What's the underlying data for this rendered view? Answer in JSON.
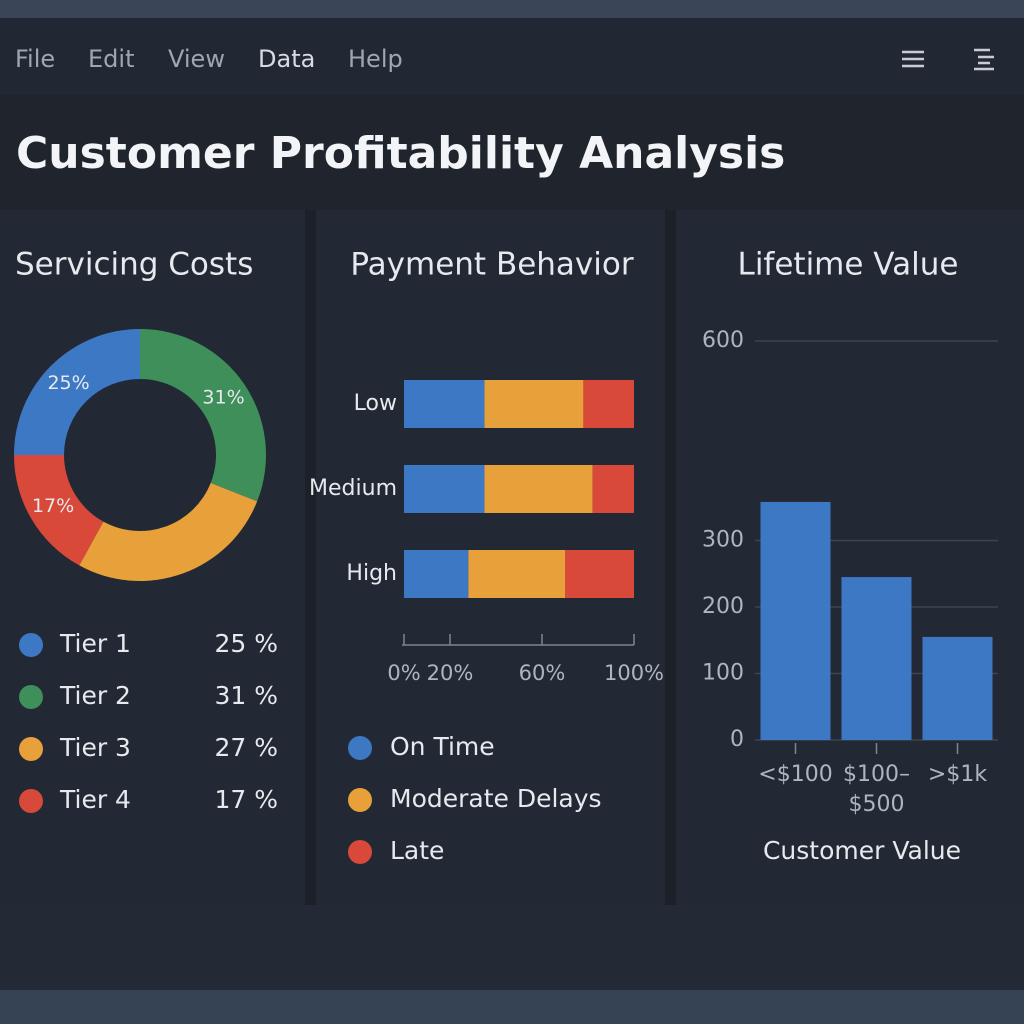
{
  "menu": [
    "File",
    "Edit",
    "View",
    "Data",
    "Help"
  ],
  "title": "Customer Profitability Analysis",
  "chart_data": [
    {
      "type": "pie",
      "title": "Servicing Costs",
      "categories": [
        "Tier 1",
        "Tier 2",
        "Tier 3",
        "Tier 4"
      ],
      "values": [
        25,
        31,
        27,
        17
      ],
      "value_labels": [
        "25 %",
        "31 %",
        "27 %",
        "17 %"
      ],
      "slice_labels": [
        "25%",
        "31%",
        null,
        "17%"
      ],
      "colors": [
        "#3d78c4",
        "#3f8f5a",
        "#e8a03a",
        "#d9493a"
      ],
      "donut": true
    },
    {
      "type": "bar",
      "title": "Payment Behavior",
      "orientation": "horizontal",
      "stacked": true,
      "categories": [
        "Low",
        "Medium",
        "High"
      ],
      "series": [
        {
          "name": "On Time",
          "color": "#3d78c4",
          "values": [
            35,
            35,
            28
          ]
        },
        {
          "name": "Moderate Delays",
          "color": "#e8a03a",
          "values": [
            43,
            47,
            42
          ]
        },
        {
          "name": "Late",
          "color": "#d9493a",
          "values": [
            22,
            18,
            30
          ]
        }
      ],
      "xlim": [
        0,
        100
      ],
      "xticks": [
        {
          "value": 0,
          "label": "0%"
        },
        {
          "value": 20,
          "label": "20%"
        },
        {
          "value": 60,
          "label": "60%"
        },
        {
          "value": 100,
          "label": "100%"
        }
      ]
    },
    {
      "type": "bar",
      "title": "Lifetime Value",
      "orientation": "vertical",
      "categories": [
        "<$100",
        "$100–$500",
        ">$1k"
      ],
      "values": [
        358,
        245,
        155
      ],
      "color": "#3d78c4",
      "xlabel": "Customer Value",
      "ylim": [
        0,
        600
      ],
      "yticks": [
        0,
        100,
        200,
        300,
        600
      ],
      "grid": true
    }
  ]
}
